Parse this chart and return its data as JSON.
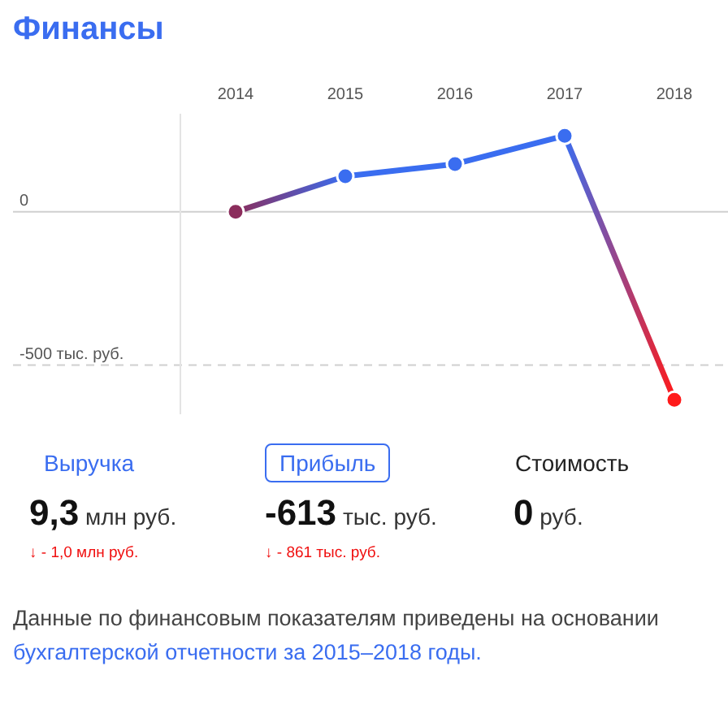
{
  "chart_data": {
    "type": "line",
    "title": "Финансы",
    "categories": [
      "2014",
      "2015",
      "2016",
      "2017",
      "2018"
    ],
    "series": [
      {
        "values": [
          0,
          116,
          156,
          248,
          -613
        ],
        "colors": [
          "#8b2d5c",
          "#3a6df0",
          "#3a6df0",
          "#3a6df0",
          "#ff1a1a"
        ]
      }
    ],
    "ylim": [
      -660,
      320
    ],
    "yticks": [
      0,
      {
        "value": -500,
        "label": "-500 тыс. руб."
      }
    ],
    "ref_lines": [
      {
        "axis": "y",
        "value": 0,
        "color": "#cfcfcf",
        "line_style": "solid"
      },
      {
        "axis": "y",
        "value": -500,
        "color": "#cfcfcf",
        "line_style": "dashed"
      }
    ],
    "marker": "circle",
    "annotations": [
      "Выручка",
      "9,3",
      "млн руб.",
      "↓ - 1,0 млн руб.",
      "Прибыль",
      "-613",
      "тыс. руб.",
      "↓ - 861 тыс. руб.",
      "Стоимость",
      "0",
      "руб.",
      "Данные по финансовым показателям приведены на основании",
      "бухгалтерской отчетности за 2015–2018 годы."
    ]
  }
}
